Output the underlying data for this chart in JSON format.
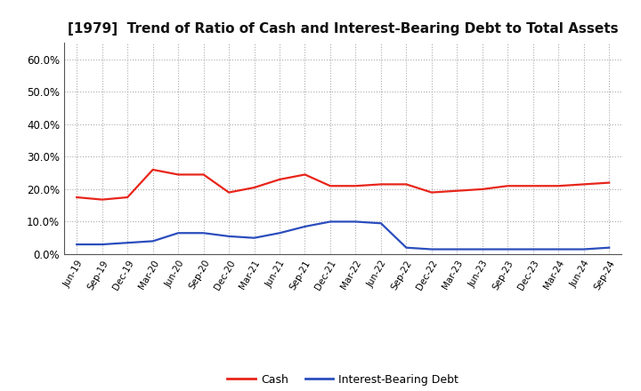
{
  "title": "[1979]  Trend of Ratio of Cash and Interest-Bearing Debt to Total Assets",
  "x_labels": [
    "Jun-19",
    "Sep-19",
    "Dec-19",
    "Mar-20",
    "Jun-20",
    "Sep-20",
    "Dec-20",
    "Mar-21",
    "Jun-21",
    "Sep-21",
    "Dec-21",
    "Mar-22",
    "Jun-22",
    "Sep-22",
    "Dec-22",
    "Mar-23",
    "Jun-23",
    "Sep-23",
    "Dec-23",
    "Mar-24",
    "Jun-24",
    "Sep-24"
  ],
  "cash": [
    17.5,
    16.8,
    17.5,
    26.0,
    24.5,
    24.5,
    19.0,
    20.5,
    23.0,
    24.5,
    21.0,
    21.0,
    21.5,
    21.5,
    19.0,
    19.5,
    20.0,
    21.0,
    21.0,
    21.0,
    21.5,
    22.0
  ],
  "debt": [
    3.0,
    3.0,
    3.5,
    4.0,
    6.5,
    6.5,
    5.5,
    5.0,
    6.5,
    8.5,
    10.0,
    10.0,
    9.5,
    2.0,
    1.5,
    1.5,
    1.5,
    1.5,
    1.5,
    1.5,
    1.5,
    2.0
  ],
  "cash_color": "#e8251a",
  "debt_color": "#2b4dbd",
  "background_color": "#ffffff",
  "plot_bg_color": "#ffffff",
  "grid_color": "#aaaaaa",
  "ylim_min": 0,
  "ylim_max": 65,
  "yticks": [
    0,
    10,
    20,
    30,
    40,
    50,
    60
  ],
  "ytick_labels": [
    "0.0%",
    "10.0%",
    "20.0%",
    "30.0%",
    "40.0%",
    "50.0%",
    "60.0%"
  ],
  "legend_cash": "Cash",
  "legend_debt": "Interest-Bearing Debt",
  "line_width": 1.6,
  "title_fontsize": 11,
  "tick_fontsize": 7.5,
  "ytick_fontsize": 8.5
}
